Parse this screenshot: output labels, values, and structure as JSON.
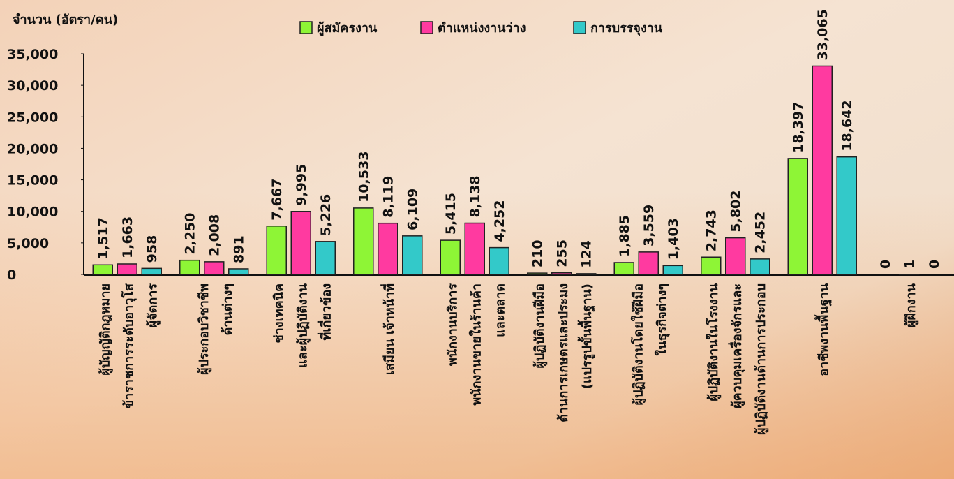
{
  "chart_data": {
    "type": "bar",
    "y_axis_label": "จำนวน (อัตรา/คน)",
    "categories": [
      [
        "ผู้บัญญัติกฎหมาย",
        "ข้าราชการระดับอาวุโส",
        "ผู้จัดการ"
      ],
      [
        "ผู้ประกอบวิชาชีพ",
        "ด้านต่างๆ"
      ],
      [
        "ช่างเทคนิค",
        "และผู้ปฏิบัติงาน",
        "ที่เกี่ยวข้อง"
      ],
      [
        "เสมียน เจ้าหน้าที่"
      ],
      [
        "พนักงานบริการ",
        "พนักงานขายในร้านค้า",
        "และตลาด"
      ],
      [
        "ผู้ปฏิบัติงานฝีมือ",
        "ด้านการเกษตรและประมง",
        "(แปรรูปขั้นพื้นฐาน)"
      ],
      [
        "ผู้ปฏิบัติงานโดยใช้ฝีมือ",
        "ในธุรกิจต่างๆ"
      ],
      [
        "ผู้ปฏิบัติงานในโรงงาน",
        "ผู้ควบคุมเครื่องจักรและ",
        "ผู้ปฏิบัติงานด้านการประกอบ"
      ],
      [
        "อาชีพงานพื้นฐาน"
      ],
      [
        "ผู้ฝึกงาน"
      ]
    ],
    "series": [
      {
        "name": "ผู้สมัครงาน",
        "color": "#8ef536",
        "values": [
          1517,
          2250,
          7667,
          10533,
          5415,
          210,
          1885,
          2743,
          18397,
          0
        ],
        "value_labels": [
          "1,517",
          "2,250",
          "7,667",
          "10,533",
          "5,415",
          "210",
          "1,885",
          "2,743",
          "18,397",
          "0"
        ]
      },
      {
        "name": "ตำแหน่งงานว่าง",
        "color": "#ff3aa0",
        "values": [
          1663,
          2008,
          9995,
          8119,
          8138,
          255,
          3559,
          5802,
          33065,
          1
        ],
        "value_labels": [
          "1,663",
          "2,008",
          "9,995",
          "8,119",
          "8,138",
          "255",
          "3,559",
          "5,802",
          "33,065",
          "1"
        ]
      },
      {
        "name": "การบรรจุงาน",
        "color": "#33c9c9",
        "values": [
          958,
          891,
          5226,
          6109,
          4252,
          124,
          1403,
          2452,
          18642,
          0
        ],
        "value_labels": [
          "958",
          "891",
          "5,226",
          "6,109",
          "4,252",
          "124",
          "1,403",
          "2,452",
          "18,642",
          "0"
        ]
      }
    ],
    "ylim": [
      0,
      35000
    ],
    "yticks": [
      0,
      {
        "value": 5000,
        "label": "5,000"
      },
      {
        "value": 10000,
        "label": "10,000"
      },
      {
        "value": 15000,
        "label": "15,000"
      },
      {
        "value": 20000,
        "label": "20,000"
      },
      {
        "value": 25000,
        "label": "25,000"
      },
      {
        "value": 30000,
        "label": "30,000"
      },
      {
        "value": 35000,
        "label": "35,000"
      }
    ],
    "legend_position": "top"
  }
}
